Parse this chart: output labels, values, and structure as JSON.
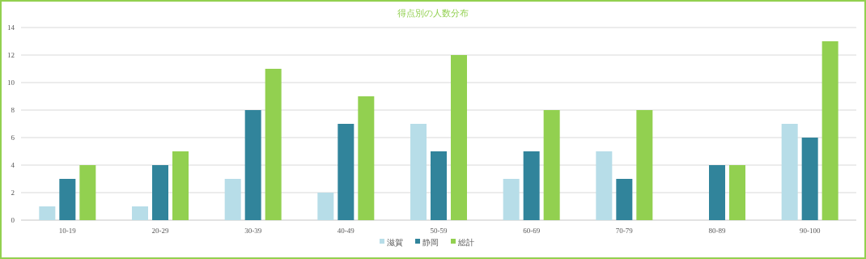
{
  "chart_data": {
    "type": "bar",
    "title": "得点別の人数分布",
    "categories": [
      "10-19",
      "20-29",
      "30-39",
      "40-49",
      "50-59",
      "60-69",
      "70-79",
      "80-89",
      "90-100"
    ],
    "series": [
      {
        "name": "滋賀",
        "color": "#b7dde8",
        "values": [
          1,
          1,
          3,
          2,
          7,
          3,
          5,
          0,
          7
        ]
      },
      {
        "name": "静岡",
        "color": "#31849b",
        "values": [
          3,
          4,
          8,
          7,
          5,
          5,
          3,
          4,
          6
        ]
      },
      {
        "name": "総計",
        "color": "#92d050",
        "values": [
          4,
          5,
          11,
          9,
          12,
          8,
          8,
          4,
          13
        ]
      }
    ],
    "ylim": [
      0,
      14
    ],
    "yticks": [
      0,
      2,
      4,
      6,
      8,
      10,
      12,
      14
    ],
    "grid": "y",
    "legend": "bottom"
  }
}
